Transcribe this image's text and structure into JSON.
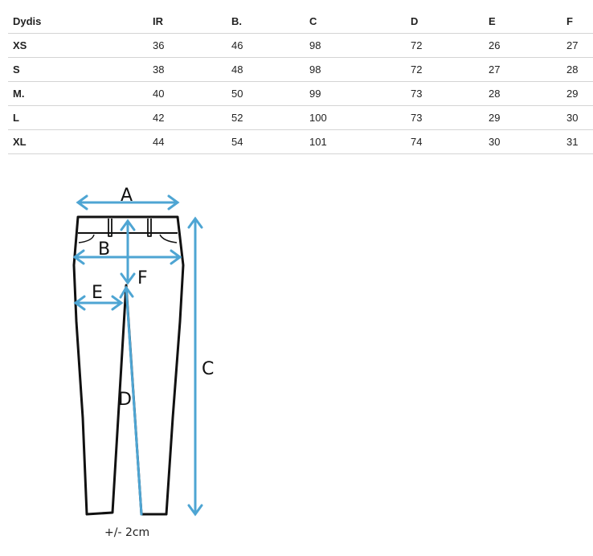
{
  "table": {
    "headers": [
      "Dydis",
      "IR",
      "B.",
      "C",
      "D",
      "E",
      "F"
    ],
    "rows": [
      [
        "XS",
        "36",
        "46",
        "98",
        "72",
        "26",
        "27"
      ],
      [
        "S",
        "38",
        "48",
        "98",
        "72",
        "27",
        "28"
      ],
      [
        "M.",
        "40",
        "50",
        "99",
        "73",
        "28",
        "29"
      ],
      [
        "L",
        "42",
        "52",
        "100",
        "73",
        "29",
        "30"
      ],
      [
        "XL",
        "44",
        "54",
        "101",
        "74",
        "30",
        "31"
      ]
    ]
  },
  "diagram": {
    "labels": {
      "a": "A",
      "b": "B",
      "c": "C",
      "d": "D",
      "e": "E",
      "f": "F"
    },
    "tolerance": "+/- 2cm",
    "arrow_color": "#4ea5d3"
  }
}
